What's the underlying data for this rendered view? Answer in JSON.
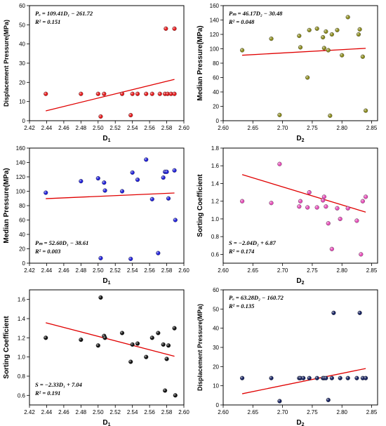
{
  "chart_data": [
    {
      "type": "scatter",
      "panel": "top-left",
      "xlabel_main": "D",
      "xlabel_sub": "1",
      "ylabel": "Displacement Pressure(MPa)",
      "xlim": [
        2.42,
        2.6
      ],
      "ylim": [
        0,
        60
      ],
      "xticks": [
        "2.42",
        "2.44",
        "2.46",
        "2.48",
        "2.50",
        "2.52",
        "2.54",
        "2.56",
        "2.58",
        "2.60"
      ],
      "yticks": [
        "0",
        "10",
        "20",
        "30",
        "40",
        "50",
        "60"
      ],
      "grid": false,
      "legend": "none",
      "marker_color": "#e41a1c",
      "fit_color": "#e00000",
      "annotation_position": "top-left",
      "equation": "Pₐ = 109.41D₁ − 261.72",
      "r2": "R² = 0.151",
      "fit": {
        "slope": 109.41,
        "intercept": -261.72,
        "x": [
          2.439,
          2.589
        ]
      },
      "x": [
        2.439,
        2.48,
        2.5,
        2.503,
        2.507,
        2.528,
        2.538,
        2.54,
        2.546,
        2.556,
        2.563,
        2.572,
        2.578,
        2.579,
        2.581,
        2.585,
        2.589,
        2.589
      ],
      "y": [
        14,
        14,
        14,
        2.2,
        14,
        14,
        2.9,
        14,
        14,
        14,
        14,
        14,
        14,
        48,
        14,
        14,
        14,
        48
      ]
    },
    {
      "type": "scatter",
      "panel": "top-right",
      "xlabel_main": "D",
      "xlabel_sub": "2",
      "ylabel": "Median Pressure(MPa)",
      "xlim": [
        2.6,
        2.86
      ],
      "ylim": [
        0,
        160
      ],
      "xticks": [
        "2.60",
        "2.65",
        "2.70",
        "2.75",
        "2.80",
        "2.85"
      ],
      "yticks": [
        "0",
        "20",
        "40",
        "60",
        "80",
        "100",
        "120",
        "140",
        "160"
      ],
      "grid": false,
      "legend": "none",
      "marker_color": "#8a8a1e",
      "fit_color": "#e00000",
      "annotation_position": "top-left",
      "equation": "Pₘ = 46.17D₂ − 30.48",
      "r2": "R² = 0.048",
      "fit": {
        "slope": 46.17,
        "intercept": -30.48,
        "x": [
          2.632,
          2.84
        ]
      },
      "x": [
        2.632,
        2.681,
        2.695,
        2.728,
        2.73,
        2.742,
        2.745,
        2.758,
        2.768,
        2.77,
        2.773,
        2.777,
        2.78,
        2.783,
        2.792,
        2.8,
        2.81,
        2.828,
        2.83,
        2.835,
        2.84
      ],
      "y": [
        98,
        114,
        8,
        118,
        102,
        60,
        126,
        128,
        116,
        101,
        124,
        98,
        7,
        120,
        126,
        91,
        144,
        120,
        127,
        89,
        14
      ]
    },
    {
      "type": "scatter",
      "panel": "middle-left",
      "xlabel_main": "D",
      "xlabel_sub": "1",
      "ylabel": "Median Pressure(MPa)",
      "xlim": [
        2.42,
        2.6
      ],
      "ylim": [
        0,
        160
      ],
      "xticks": [
        "2.42",
        "2.44",
        "2.46",
        "2.48",
        "2.50",
        "2.52",
        "2.54",
        "2.56",
        "2.58",
        "2.60"
      ],
      "yticks": [
        "0",
        "20",
        "40",
        "60",
        "80",
        "100",
        "120",
        "140",
        "160"
      ],
      "grid": false,
      "legend": "none",
      "marker_color": "#1f1fd6",
      "fit_color": "#e00000",
      "annotation_position": "bottom-left",
      "equation": "Pₘ = 52.60D₁ − 38.61",
      "r2": "R² = 0.003",
      "fit": {
        "slope": 52.6,
        "intercept": -38.61,
        "x": [
          2.439,
          2.589
        ]
      },
      "x": [
        2.439,
        2.48,
        2.5,
        2.503,
        2.507,
        2.508,
        2.528,
        2.538,
        2.54,
        2.546,
        2.556,
        2.563,
        2.57,
        2.576,
        2.578,
        2.58,
        2.582,
        2.589,
        2.59
      ],
      "y": [
        98,
        114,
        118,
        7,
        112,
        101,
        100,
        6,
        126,
        116,
        144,
        89,
        14,
        119,
        127,
        127,
        90,
        129,
        60
      ]
    },
    {
      "type": "scatter",
      "panel": "middle-right",
      "xlabel_main": "D",
      "xlabel_sub": "2",
      "ylabel": "Sorting Coefficient",
      "xlim": [
        2.6,
        2.86
      ],
      "ylim": [
        0.5,
        1.8
      ],
      "xticks": [
        "2.60",
        "2.65",
        "2.70",
        "2.75",
        "2.80",
        "2.85"
      ],
      "yticks": [
        "0.6",
        "0.8",
        "1.0",
        "1.2",
        "1.4",
        "1.6",
        "1.8"
      ],
      "grid": false,
      "legend": "none",
      "marker_color": "#e54db8",
      "fit_color": "#e00000",
      "annotation_position": "bottom-left",
      "equation": "S = −2.04D₂ + 6.87",
      "r2": "R² = 0.174",
      "fit": {
        "slope": -2.04,
        "intercept": 6.87,
        "x": [
          2.632,
          2.84
        ]
      },
      "x": [
        2.632,
        2.681,
        2.695,
        2.728,
        2.73,
        2.742,
        2.745,
        2.758,
        2.768,
        2.77,
        2.773,
        2.777,
        2.783,
        2.792,
        2.797,
        2.81,
        2.825,
        2.832,
        2.835,
        2.84
      ],
      "y": [
        1.2,
        1.18,
        1.62,
        1.14,
        1.2,
        1.13,
        1.3,
        1.13,
        1.21,
        1.25,
        1.14,
        0.95,
        0.66,
        1.12,
        1.0,
        1.12,
        0.98,
        0.6,
        1.2,
        1.25
      ]
    },
    {
      "type": "scatter",
      "panel": "bottom-left",
      "xlabel_main": "D",
      "xlabel_sub": "1",
      "ylabel": "Sorting Coefficient",
      "xlim": [
        2.42,
        2.6
      ],
      "ylim": [
        0.5,
        1.7
      ],
      "xticks": [
        "2.42",
        "2.44",
        "2.46",
        "2.48",
        "2.50",
        "2.52",
        "2.54",
        "2.56",
        "2.58",
        "2.60"
      ],
      "yticks": [
        "0.6",
        "0.8",
        "1.0",
        "1.2",
        "1.4",
        "1.6"
      ],
      "grid": false,
      "legend": "none",
      "marker_color": "#111111",
      "fit_color": "#e00000",
      "annotation_position": "bottom-left",
      "equation": "S = −2.33D₁ + 7.04",
      "r2": "R² = 0.191",
      "fit": {
        "slope": -2.33,
        "intercept": 7.04,
        "x": [
          2.439,
          2.589
        ]
      },
      "x": [
        2.439,
        2.48,
        2.5,
        2.503,
        2.507,
        2.508,
        2.528,
        2.538,
        2.54,
        2.546,
        2.556,
        2.563,
        2.57,
        2.576,
        2.578,
        2.58,
        2.582,
        2.589,
        2.59
      ],
      "y": [
        1.2,
        1.18,
        1.12,
        1.62,
        1.22,
        1.2,
        1.25,
        0.95,
        1.13,
        1.14,
        1.0,
        1.2,
        1.25,
        1.13,
        0.65,
        0.98,
        1.12,
        1.3,
        0.6
      ]
    },
    {
      "type": "scatter",
      "panel": "bottom-right",
      "xlabel_main": "D",
      "xlabel_sub": "2",
      "ylabel": "Displacement Pressure(MPa)",
      "xlim": [
        2.6,
        2.86
      ],
      "ylim": [
        0,
        60
      ],
      "xticks": [
        "2.60",
        "2.65",
        "2.70",
        "2.75",
        "2.80",
        "2.85"
      ],
      "yticks": [
        "0",
        "10",
        "20",
        "30",
        "40",
        "50",
        "60"
      ],
      "grid": false,
      "legend": "none",
      "marker_color": "#14205e",
      "fit_color": "#e00000",
      "annotation_position": "top-left",
      "equation": "Pₐ = 63.28D₂ − 160.72",
      "r2": "R² = 0.135",
      "fit": {
        "slope": 63.28,
        "intercept": -160.72,
        "x": [
          2.632,
          2.84
        ]
      },
      "x": [
        2.632,
        2.681,
        2.695,
        2.728,
        2.73,
        2.735,
        2.745,
        2.758,
        2.768,
        2.77,
        2.773,
        2.777,
        2.783,
        2.786,
        2.797,
        2.81,
        2.825,
        2.83,
        2.835,
        2.84
      ],
      "y": [
        14,
        14,
        2,
        14,
        14,
        14,
        14,
        14,
        14,
        14,
        14,
        2.6,
        14,
        48,
        14,
        14,
        14,
        48,
        14,
        14
      ]
    }
  ]
}
